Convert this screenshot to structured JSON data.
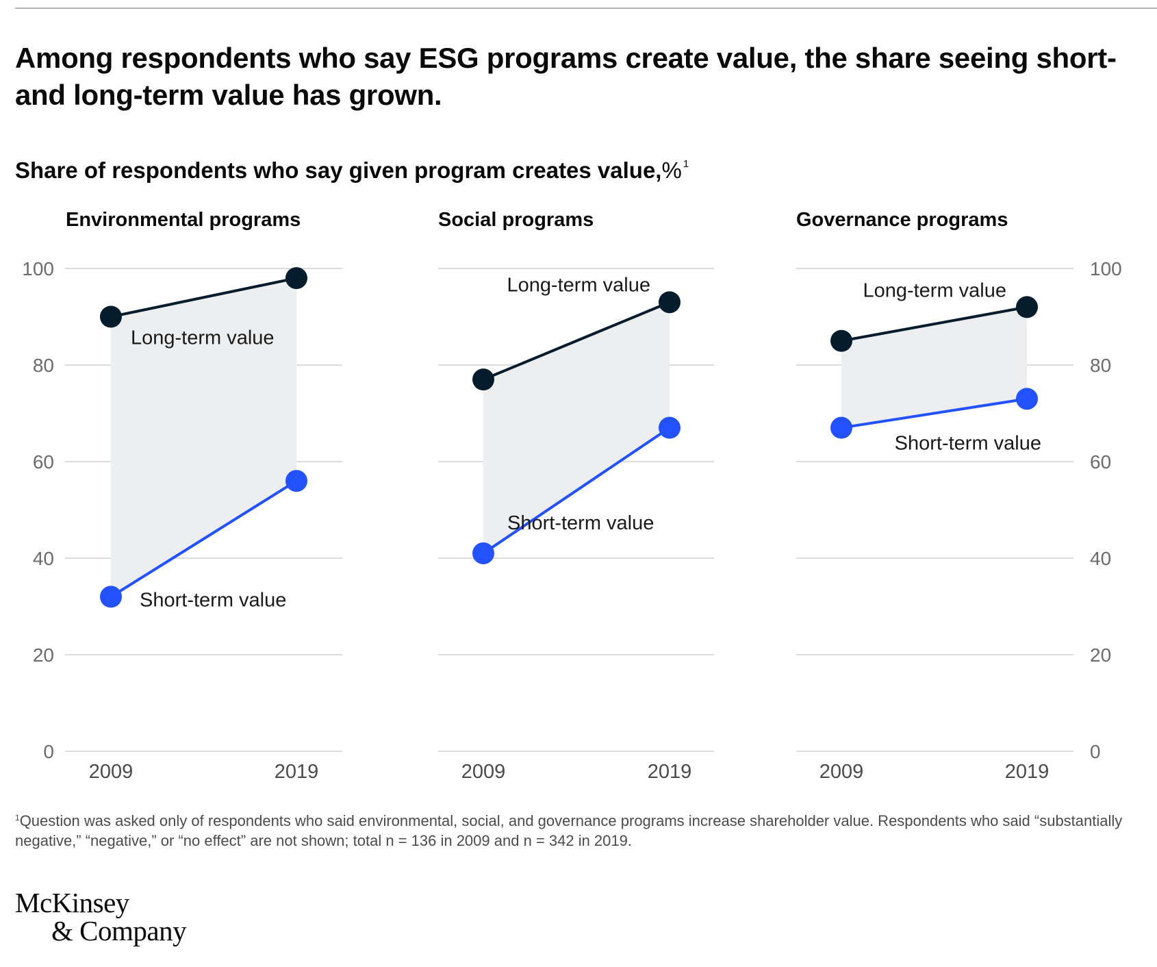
{
  "headline": "Among respondents who say ESG programs create value, the share seeing short- and long-term value has grown.",
  "subtitle": {
    "text": "Share of respondents who say given program creates value,",
    "unit": "%",
    "footnote_marker": "1"
  },
  "colors": {
    "long_term": "#051c2c",
    "short_term": "#2251ff",
    "band": "#eceef0",
    "grid": "#d0d0d0",
    "axis_text": "#6b6b6b"
  },
  "chart_data": [
    {
      "type": "line",
      "title": "Environmental programs",
      "x": [
        "2009",
        "2019"
      ],
      "ylim": [
        0,
        100
      ],
      "yticks": [
        0,
        20,
        40,
        60,
        80,
        100
      ],
      "grid": true,
      "axis_side": "left",
      "series": [
        {
          "name": "Long-term value",
          "values": [
            90,
            98
          ]
        },
        {
          "name": "Short-term value",
          "values": [
            32,
            56
          ]
        }
      ]
    },
    {
      "type": "line",
      "title": "Social programs",
      "x": [
        "2009",
        "2019"
      ],
      "ylim": [
        0,
        100
      ],
      "yticks": [
        0,
        20,
        40,
        60,
        80,
        100
      ],
      "grid": true,
      "axis_side": "none",
      "series": [
        {
          "name": "Long-term value",
          "values": [
            77,
            93
          ]
        },
        {
          "name": "Short-term value",
          "values": [
            41,
            67
          ]
        }
      ]
    },
    {
      "type": "line",
      "title": "Governance programs",
      "x": [
        "2009",
        "2019"
      ],
      "ylim": [
        0,
        100
      ],
      "yticks": [
        0,
        20,
        40,
        60,
        80,
        100
      ],
      "grid": true,
      "axis_side": "right",
      "series": [
        {
          "name": "Long-term value",
          "values": [
            85,
            92
          ]
        },
        {
          "name": "Short-term value",
          "values": [
            67,
            73
          ]
        }
      ]
    }
  ],
  "footnote": {
    "marker": "1",
    "text": "Question was asked only of respondents who said environmental, social, and governance programs increase shareholder value. Respondents who said “substantially negative,” “negative,” or “no effect” are not shown; total n = 136 in 2009 and n = 342 in 2019."
  },
  "logo": {
    "line1": "McKinsey",
    "line2": "& Company"
  }
}
